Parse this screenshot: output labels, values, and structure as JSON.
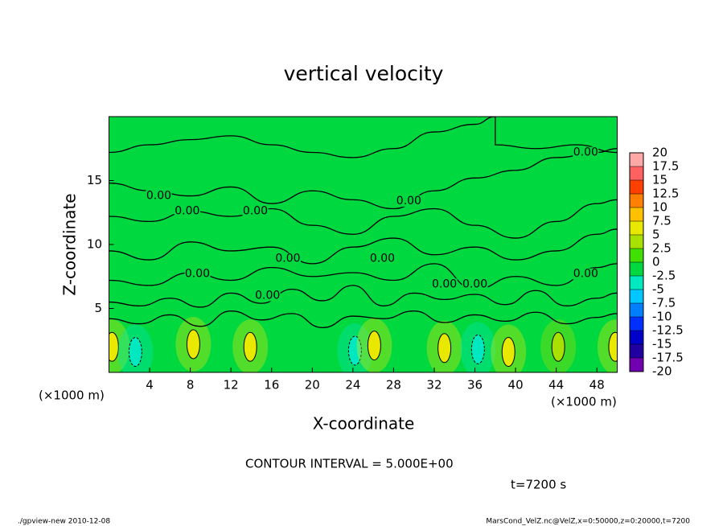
{
  "chart_data": {
    "type": "contour",
    "title": "vertical velocity",
    "xlabel": "X-coordinate",
    "ylabel": "Z-coordinate",
    "x_unit": "(×1000 m)",
    "y_unit": "(×1000 m)",
    "xlim": [
      0,
      50
    ],
    "ylim": [
      0,
      20
    ],
    "xticks": [
      4,
      8,
      12,
      16,
      20,
      24,
      28,
      32,
      36,
      40,
      44,
      48
    ],
    "yticks": [
      5,
      10,
      15
    ],
    "contour_interval": "CONTOUR INTERVAL = 5.000E+00",
    "time": "t=7200 s",
    "footer_left": "./gpview-new  2010-12-08",
    "footer_right": "MarsCond_VelZ.nc@VelZ,x=0:50000,z=0:20000,t=7200",
    "colorbar": {
      "levels": [
        20,
        17.5,
        15,
        12.5,
        10,
        7.5,
        5,
        2.5,
        0,
        -2.5,
        -5,
        -7.5,
        -10,
        -12.5,
        -15,
        -17.5,
        -20
      ],
      "colors": [
        "#ffa8a8",
        "#ff6060",
        "#ff4000",
        "#ff8000",
        "#ffc000",
        "#e8e800",
        "#a8e000",
        "#40e000",
        "#00d840",
        "#00e8c0",
        "#00c8ff",
        "#0080ff",
        "#0030ff",
        "#0000c8",
        "#2000a0",
        "#7000b0"
      ]
    },
    "contour_lines": [
      {
        "x": [
          0,
          4,
          8,
          12,
          16,
          20,
          24,
          28,
          32,
          36,
          38,
          38,
          42,
          46,
          50
        ],
        "z": [
          17.2,
          17.8,
          18.2,
          18.5,
          17.8,
          17.2,
          16.8,
          17.5,
          18.8,
          19.4,
          20,
          17.8,
          17.5,
          17.8,
          17.2
        ]
      },
      {
        "x": [
          0,
          4,
          8,
          12,
          16,
          20,
          24,
          28,
          32,
          36,
          40,
          44,
          48,
          50
        ],
        "z": [
          14.8,
          14.2,
          13.8,
          14.5,
          13.2,
          14.2,
          13.5,
          12.8,
          14.2,
          15.2,
          15.8,
          16.8,
          17.2,
          17.5
        ]
      },
      {
        "x": [
          0,
          4,
          8,
          12,
          16,
          20,
          24,
          28,
          32,
          36,
          40,
          44,
          48,
          50
        ],
        "z": [
          12.2,
          11.8,
          12.6,
          12.2,
          12.8,
          11.5,
          10.8,
          12.2,
          12.8,
          11.5,
          10.5,
          11.8,
          13.2,
          13.5
        ]
      },
      {
        "x": [
          0,
          4,
          8,
          12,
          16,
          20,
          24,
          28,
          32,
          36,
          40,
          44,
          48,
          50
        ],
        "z": [
          9.5,
          8.8,
          10.2,
          9.5,
          9.8,
          8.5,
          9.8,
          10.5,
          9.2,
          9.8,
          8.8,
          9.5,
          10.8,
          11.2
        ]
      },
      {
        "x": [
          0,
          4,
          8,
          12,
          16,
          20,
          24,
          28,
          32,
          36,
          40,
          44,
          48,
          50
        ],
        "z": [
          7.2,
          6.8,
          7.8,
          7.2,
          8.2,
          7.5,
          7.8,
          7.2,
          8.5,
          6.5,
          7.5,
          6.8,
          8.2,
          8.5
        ]
      },
      {
        "x": [
          0,
          3,
          6,
          9,
          12,
          15,
          18,
          21,
          24,
          27,
          30,
          33,
          36,
          39,
          42,
          45,
          48,
          50
        ],
        "z": [
          5.5,
          5.2,
          5.8,
          5.1,
          6.2,
          5.4,
          6.5,
          5.6,
          6.8,
          5.2,
          6.2,
          5.7,
          6.1,
          5.3,
          6.4,
          5.2,
          5.8,
          6.2
        ]
      },
      {
        "x": [
          0,
          3,
          6,
          9,
          12,
          15,
          18,
          21,
          24,
          27,
          30,
          33,
          36,
          39,
          42,
          45,
          48,
          50
        ],
        "z": [
          4.2,
          3.8,
          4.5,
          3.6,
          4.8,
          4.1,
          4.6,
          3.5,
          4.4,
          4.2,
          4.8,
          3.9,
          4.5,
          4.0,
          4.7,
          3.8,
          4.3,
          4.6
        ]
      }
    ],
    "cells": [
      {
        "x": 0.3,
        "z": 2,
        "value": 5
      },
      {
        "x": 2.6,
        "z": 1.6,
        "value": -5
      },
      {
        "x": 8.3,
        "z": 2.2,
        "value": 5
      },
      {
        "x": 13.9,
        "z": 2,
        "value": 5
      },
      {
        "x": 24.2,
        "z": 1.7,
        "value": -5
      },
      {
        "x": 26.1,
        "z": 2.1,
        "value": 5
      },
      {
        "x": 33,
        "z": 1.9,
        "value": 5
      },
      {
        "x": 36.3,
        "z": 1.8,
        "value": -5
      },
      {
        "x": 39.3,
        "z": 1.6,
        "value": 5
      },
      {
        "x": 44.2,
        "z": 2,
        "value": 2.5
      },
      {
        "x": 49.8,
        "z": 2,
        "value": 5
      }
    ],
    "contour_labels": [
      {
        "label": "0.00",
        "x": 46.9,
        "z": 17.2
      },
      {
        "label": "0.00",
        "x": 4.9,
        "z": 13.8
      },
      {
        "label": "0.00",
        "x": 7.7,
        "z": 12.6
      },
      {
        "label": "0.00",
        "x": 14.4,
        "z": 12.6
      },
      {
        "label": "0.00",
        "x": 29.5,
        "z": 13.4
      },
      {
        "label": "0.00",
        "x": 17.6,
        "z": 8.9
      },
      {
        "label": "0.00",
        "x": 26.9,
        "z": 8.9
      },
      {
        "label": "0.00",
        "x": 8.7,
        "z": 7.7
      },
      {
        "label": "0.00",
        "x": 15.6,
        "z": 6
      },
      {
        "label": "0.00",
        "x": 33,
        "z": 6.9
      },
      {
        "label": "0.00",
        "x": 36,
        "z": 6.9
      },
      {
        "label": "0.00",
        "x": 46.9,
        "z": 7.7
      }
    ]
  }
}
